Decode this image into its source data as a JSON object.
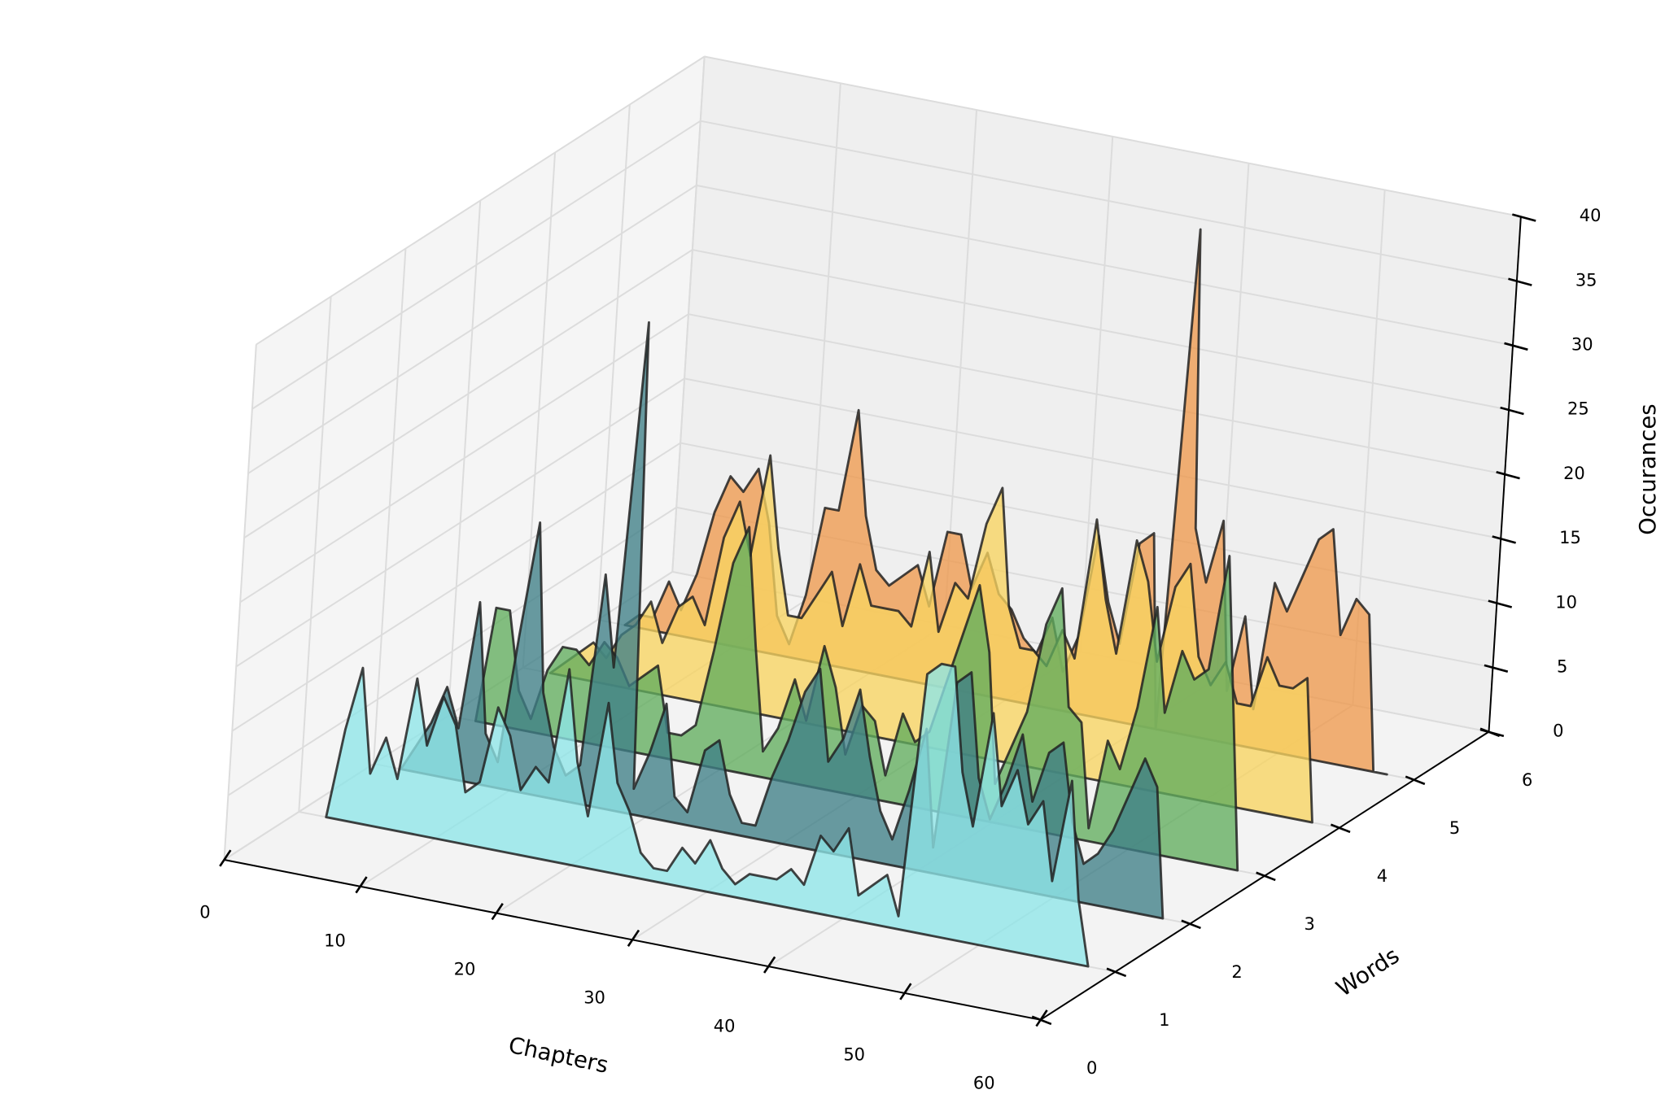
{
  "chart_data": {
    "type": "polygon3d",
    "xlabel": "Chapters",
    "ylabel": "Words",
    "zlabel": "Occurances",
    "xlim": [
      0,
      60
    ],
    "xticks": [
      0,
      10,
      20,
      30,
      40,
      50,
      60
    ],
    "ylim": [
      0,
      6
    ],
    "yticks": [
      0,
      1,
      2,
      3,
      4,
      5,
      6
    ],
    "zlim": [
      0,
      40
    ],
    "zticks": [
      0,
      5,
      10,
      15,
      20,
      25,
      30,
      35,
      40
    ],
    "grid": true,
    "x": [
      2,
      3,
      4,
      5,
      6,
      7,
      8,
      9,
      10,
      11,
      12,
      13,
      14,
      15,
      16,
      17,
      18,
      19,
      20,
      21,
      22,
      23,
      24,
      25,
      26,
      27,
      28,
      29,
      30,
      31,
      32,
      33,
      34,
      35,
      36,
      37,
      38,
      39,
      40,
      41,
      42,
      43,
      44,
      45,
      46,
      47,
      48,
      49,
      50,
      51,
      52,
      53,
      54,
      55,
      56,
      57,
      58
    ],
    "series": [
      {
        "y": 5,
        "color": "#ee9a4e",
        "values": [
          0,
          1,
          1,
          4,
          2,
          5,
          10,
          13,
          12,
          14,
          10,
          3,
          1,
          5,
          12,
          12,
          20,
          12,
          8,
          7,
          8,
          9,
          6,
          12,
          12,
          8,
          11,
          8,
          7,
          5,
          4,
          7,
          3,
          6,
          14,
          9,
          6,
          14,
          15,
          0,
          39,
          16,
          12,
          17,
          4,
          10,
          3,
          13,
          11,
          14,
          17,
          18,
          10,
          13,
          12,
          0,
          0
        ]
      },
      {
        "y": 4,
        "color": "#f7d460",
        "values": [
          0,
          1,
          2,
          3,
          2,
          4,
          5,
          7,
          4,
          7,
          8,
          6,
          13,
          16,
          12,
          20,
          13,
          8,
          8,
          10,
          12,
          8,
          13,
          10,
          10,
          10,
          9,
          15,
          9,
          13,
          12,
          18,
          21,
          12,
          9,
          9,
          8,
          11,
          9,
          20,
          14,
          10,
          19,
          16,
          10,
          16,
          18,
          11,
          9,
          11,
          8,
          8,
          12,
          10,
          10,
          11,
          0
        ]
      },
      {
        "y": 3,
        "color": "#62ad5e",
        "values": [
          0,
          9,
          9,
          3,
          1,
          5,
          7,
          7,
          6,
          8,
          7,
          5,
          6,
          7,
          2,
          2,
          3,
          9,
          16,
          19,
          10,
          2,
          4,
          8,
          5,
          11,
          8,
          3,
          7,
          6,
          2,
          7,
          5,
          6,
          10,
          14,
          18,
          13,
          3,
          6,
          9,
          16,
          19,
          10,
          9,
          1,
          8,
          6,
          11,
          19,
          11,
          16,
          14,
          15,
          24,
          12,
          0
        ]
      },
      {
        "y": 2,
        "color": "#3f7f86",
        "values": [
          0,
          2,
          4,
          7,
          4,
          14,
          4,
          2,
          12,
          21,
          8,
          4,
          2,
          3,
          18,
          11,
          38,
          2,
          5,
          9,
          2,
          1,
          6,
          7,
          3,
          1,
          1,
          5,
          8,
          12,
          14,
          7,
          9,
          13,
          8,
          4,
          2,
          6,
          11,
          2,
          15,
          16,
          8,
          5,
          8,
          12,
          7,
          11,
          12,
          6,
          3,
          4,
          6,
          9,
          12,
          10,
          0
        ]
      },
      {
        "y": 1,
        "color": "#8ee6e8",
        "values": [
          0,
          7,
          12,
          4,
          7,
          4,
          12,
          7,
          11,
          9,
          4,
          5,
          11,
          9,
          5,
          7,
          6,
          15,
          8,
          4,
          13,
          7,
          5,
          2,
          1,
          1,
          3,
          2,
          4,
          2,
          1,
          2,
          2,
          2,
          3,
          2,
          6,
          5,
          7,
          2,
          3,
          4,
          1,
          20,
          21,
          21,
          13,
          9,
          18,
          11,
          14,
          10,
          12,
          6,
          14,
          5,
          0
        ]
      }
    ]
  }
}
